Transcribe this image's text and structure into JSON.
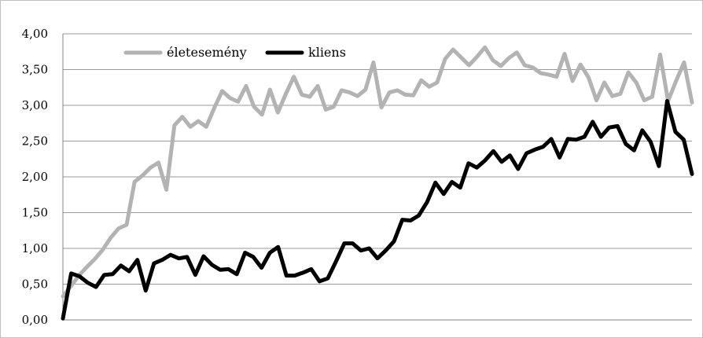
{
  "chart_data": {
    "type": "line",
    "title": "",
    "xlabel": "",
    "ylabel": "",
    "ylim": [
      0,
      4
    ],
    "yticks": [
      "0,00",
      "0,50",
      "1,00",
      "1,50",
      "2,00",
      "2,50",
      "3,00",
      "3,50",
      "4,00"
    ],
    "grid": true,
    "legend_position": "top-left",
    "series": [
      {
        "name": "életesemény",
        "color": "#b3b3b3",
        "values": [
          0.33,
          0.47,
          0.62,
          0.74,
          0.85,
          0.98,
          1.15,
          1.28,
          1.33,
          1.93,
          2.02,
          2.13,
          2.2,
          1.82,
          2.72,
          2.84,
          2.7,
          2.78,
          2.7,
          2.96,
          3.2,
          3.1,
          3.05,
          3.27,
          2.98,
          2.87,
          3.22,
          2.9,
          3.16,
          3.4,
          3.15,
          3.12,
          3.27,
          2.94,
          2.98,
          3.21,
          3.18,
          3.13,
          3.22,
          3.6,
          2.97,
          3.18,
          3.21,
          3.15,
          3.14,
          3.35,
          3.26,
          3.32,
          3.65,
          3.78,
          3.67,
          3.56,
          3.68,
          3.81,
          3.63,
          3.55,
          3.66,
          3.74,
          3.56,
          3.53,
          3.45,
          3.43,
          3.4,
          3.72,
          3.34,
          3.57,
          3.39,
          3.07,
          3.32,
          3.13,
          3.16,
          3.46,
          3.32,
          3.07,
          3.12,
          3.71,
          3.06,
          3.34,
          3.6,
          3.04
        ]
      },
      {
        "name": "kliens",
        "color": "#000000",
        "values": [
          0.02,
          0.65,
          0.61,
          0.52,
          0.46,
          0.63,
          0.64,
          0.76,
          0.68,
          0.84,
          0.41,
          0.79,
          0.84,
          0.91,
          0.86,
          0.88,
          0.63,
          0.89,
          0.77,
          0.7,
          0.71,
          0.64,
          0.94,
          0.88,
          0.73,
          0.94,
          1.02,
          0.62,
          0.62,
          0.66,
          0.71,
          0.54,
          0.58,
          0.82,
          1.07,
          1.07,
          0.97,
          1.0,
          0.86,
          0.97,
          1.1,
          1.4,
          1.39,
          1.46,
          1.65,
          1.92,
          1.76,
          1.93,
          1.85,
          2.19,
          2.13,
          2.23,
          2.36,
          2.21,
          2.3,
          2.11,
          2.33,
          2.38,
          2.42,
          2.53,
          2.27,
          2.53,
          2.52,
          2.56,
          2.77,
          2.56,
          2.69,
          2.71,
          2.46,
          2.37,
          2.65,
          2.49,
          2.15,
          3.06,
          2.63,
          2.52,
          2.04
        ]
      }
    ]
  }
}
